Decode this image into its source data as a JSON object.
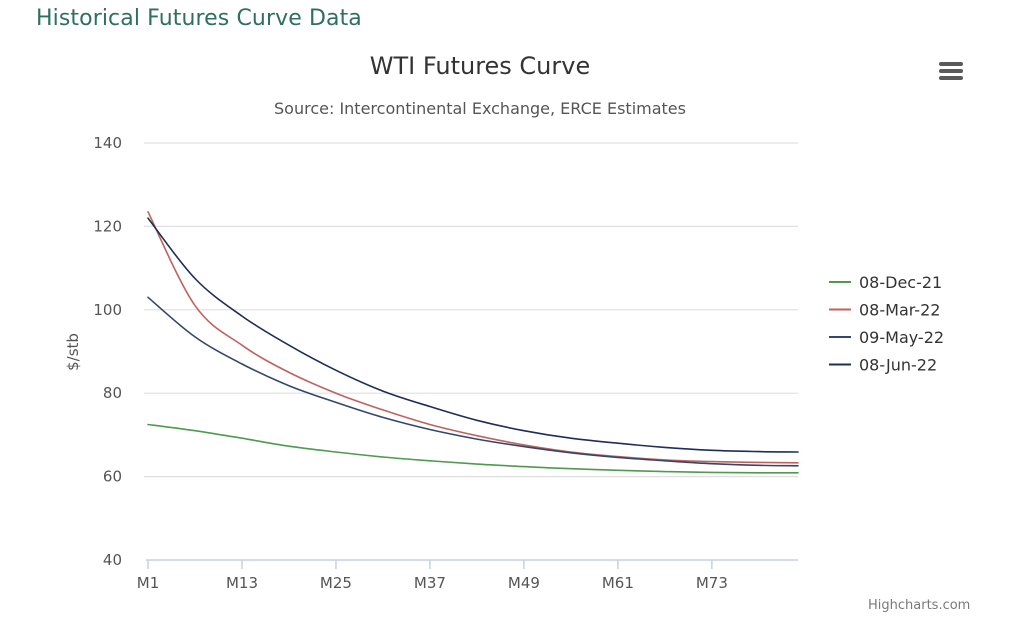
{
  "page": {
    "heading": "Historical Futures Curve Data",
    "credits": "Highcharts.com"
  },
  "icons": {
    "menu": "hamburger-menu-icon"
  },
  "chart_data": {
    "type": "line",
    "title": "WTI Futures Curve",
    "subtitle": "Source: Intercontinental Exchange, ERCE Estimates",
    "ylabel": "$/stb",
    "xlabel": "",
    "ylim": [
      40,
      140
    ],
    "yticks": [
      40,
      60,
      80,
      100,
      120,
      140
    ],
    "x_range": [
      1,
      84
    ],
    "x_prefix": "M",
    "xticks": [
      1,
      13,
      25,
      37,
      49,
      61,
      73
    ],
    "xtick_labels": [
      "M1",
      "M13",
      "M25",
      "M37",
      "M49",
      "M61",
      "M73"
    ],
    "grid": true,
    "legend_position": "right",
    "x": [
      1,
      7,
      13,
      19,
      25,
      31,
      37,
      43,
      49,
      55,
      61,
      67,
      73,
      79,
      84
    ],
    "series": [
      {
        "name": "08-Dec-21",
        "color": "#4f9a4f",
        "values": [
          72.5,
          71.0,
          69.2,
          67.3,
          65.9,
          64.7,
          63.8,
          63.0,
          62.4,
          61.9,
          61.5,
          61.2,
          61.0,
          60.9,
          60.9
        ]
      },
      {
        "name": "08-Mar-22",
        "color": "#c0625e",
        "values": [
          123.5,
          101.0,
          91.5,
          85.0,
          80.0,
          76.0,
          72.5,
          69.8,
          67.6,
          65.9,
          64.8,
          64.0,
          63.6,
          63.4,
          63.3
        ]
      },
      {
        "name": "09-May-22",
        "color": "#34476b",
        "values": [
          103.0,
          93.5,
          87.0,
          81.8,
          77.8,
          74.2,
          71.3,
          69.0,
          67.2,
          65.7,
          64.6,
          63.8,
          63.1,
          62.7,
          62.6
        ]
      },
      {
        "name": "08-Jun-22",
        "color": "#1d2f57",
        "values": [
          122.0,
          107.5,
          98.5,
          91.5,
          85.5,
          80.5,
          76.8,
          73.5,
          71.0,
          69.2,
          68.0,
          67.0,
          66.3,
          66.0,
          65.9
        ]
      }
    ]
  }
}
